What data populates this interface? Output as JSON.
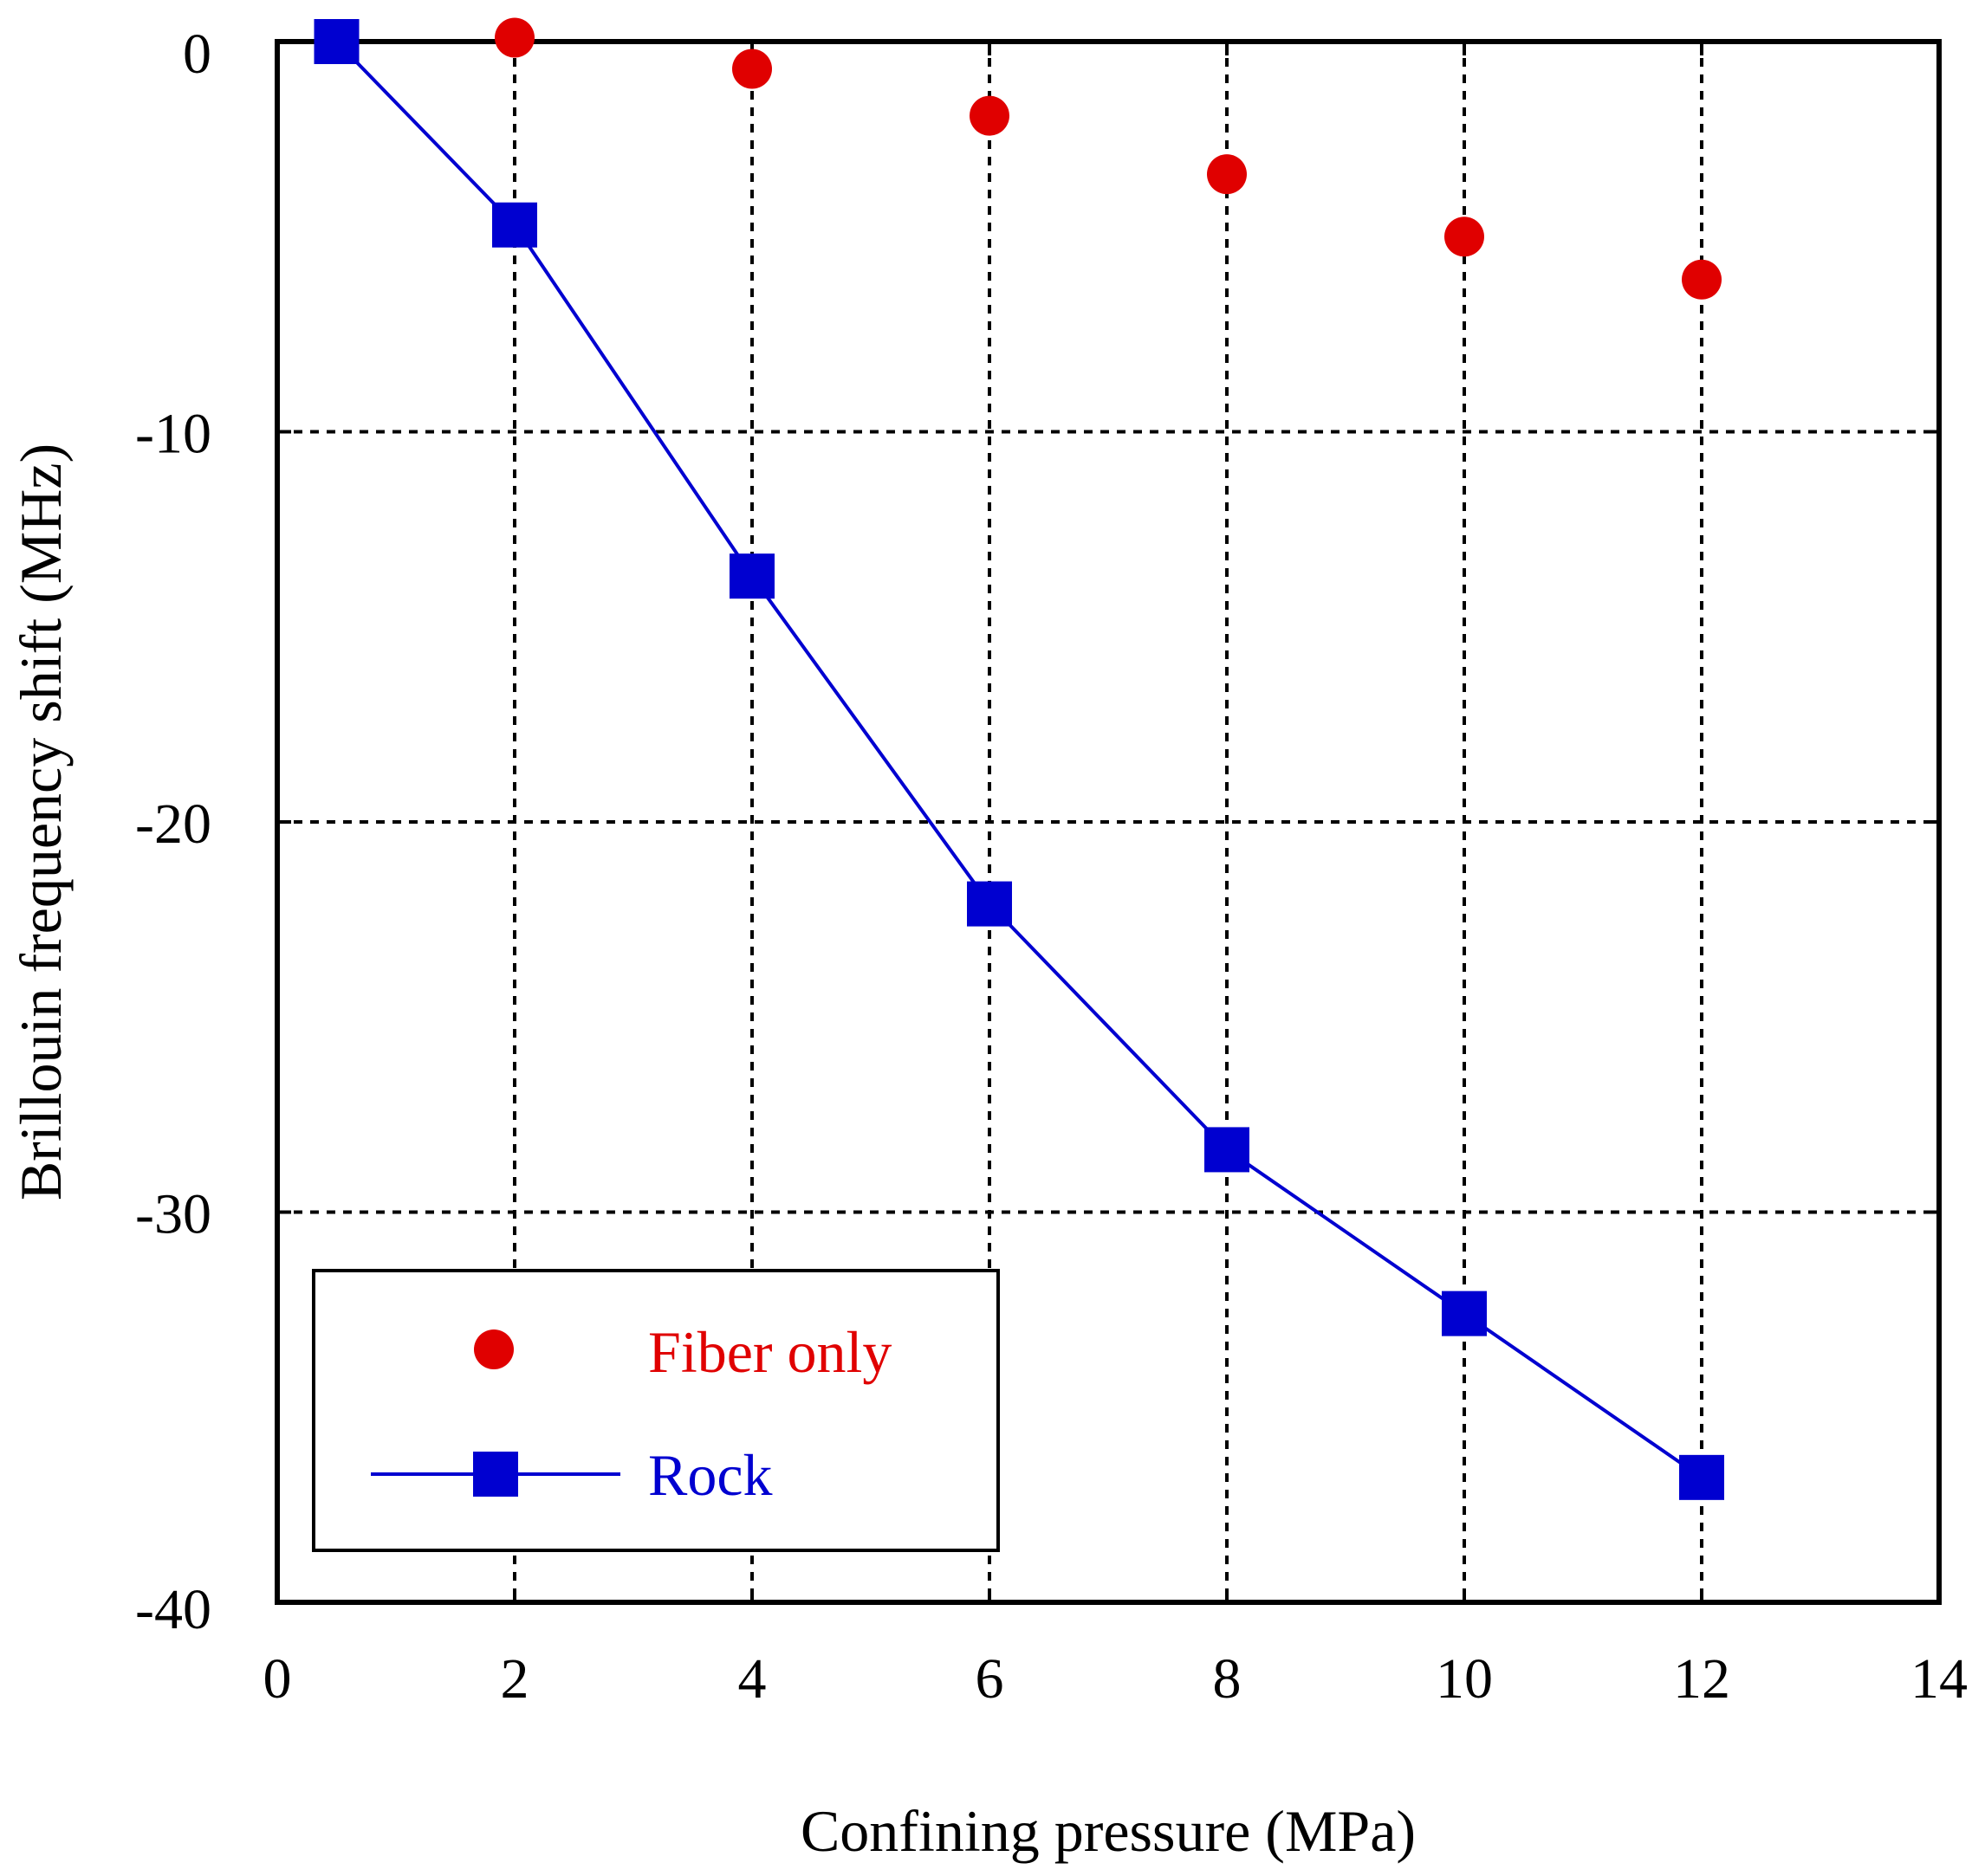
{
  "chart_data": {
    "type": "scatter",
    "title": "",
    "xlabel": "Confining pressure (MPa)",
    "ylabel": "Brillouin frequency shift (MHz)",
    "xlim": [
      0,
      14
    ],
    "ylim": [
      -40,
      0
    ],
    "xticks": [
      0,
      2,
      4,
      6,
      8,
      10,
      12,
      14
    ],
    "yticks": [
      0,
      -10,
      -20,
      -30,
      -40
    ],
    "xtick_labels": [
      "0",
      "2",
      "4",
      "6",
      "8",
      "10",
      "12",
      "14"
    ],
    "ytick_labels": [
      "0",
      "-10",
      "-20",
      "-30",
      "-40"
    ],
    "grid": true,
    "legend_position": "bottom-left",
    "series": [
      {
        "name": "Fiber only",
        "marker": "circle",
        "line": false,
        "color": "#e00000",
        "x": [
          2,
          4,
          6,
          8,
          10,
          12
        ],
        "y": [
          0.1,
          -0.7,
          -1.9,
          -3.4,
          -5.0,
          -6.1
        ]
      },
      {
        "name": "Rock",
        "marker": "square",
        "line": true,
        "color": "#0000d0",
        "x": [
          0.5,
          2,
          4,
          6,
          8,
          10,
          12
        ],
        "y": [
          0,
          -4.7,
          -13.7,
          -22.1,
          -28.4,
          -32.6,
          -36.8
        ]
      }
    ]
  }
}
